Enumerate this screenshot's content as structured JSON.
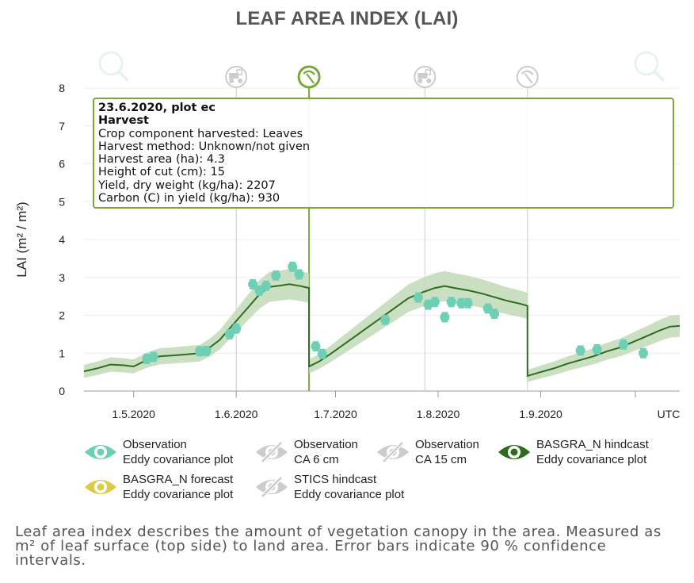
{
  "title": "LEAF AREA INDEX (LAI)",
  "tooltip": {
    "line1": "23.6.2020, plot ec",
    "line2": "Harvest",
    "lines": [
      "Crop component harvested: Leaves",
      "Harvest method: Unknown/not given",
      "Harvest area (ha): 4.3",
      "Height of cut (cm): 15",
      "Yield, dry weight (kg/ha): 2207",
      "Carbon (C) in yield (kg/ha): 930"
    ]
  },
  "legend": [
    {
      "title": "Observation",
      "sub": "Eddy covariance plot",
      "icon": "eye-icon",
      "color": "#6fcfb5",
      "active": true
    },
    {
      "title": "Observation",
      "sub": "CA 6 cm",
      "icon": "eye-slash-icon",
      "color": "#cccccc",
      "active": false
    },
    {
      "title": "Observation",
      "sub": "CA 15 cm",
      "icon": "eye-slash-icon",
      "color": "#cccccc",
      "active": false
    },
    {
      "title": "BASGRA_N hindcast",
      "sub": "Eddy covariance plot",
      "icon": "eye-icon",
      "color": "#2d6b1e",
      "active": true
    },
    {
      "title": "BASGRA_N forecast",
      "sub": "Eddy covariance plot",
      "icon": "eye-icon",
      "color": "#dccb4a",
      "active": true
    },
    {
      "title": "STICS hindcast",
      "sub": "Eddy covariance plot",
      "icon": "eye-slash-icon",
      "color": "#cccccc",
      "active": false
    }
  ],
  "description": "Leaf area index describes the amount of vegetation canopy in the area. Measured as m² of leaf surface (top side) to land area. Error bars indicate 90 % confidence intervals.",
  "colors": {
    "observation": "#6fcfb5",
    "hindcast_line": "#2d6b1e",
    "band": "#c2dbb8",
    "event_active": "#78a83c",
    "event_inactive": "#cccccc"
  },
  "chart_data": {
    "type": "line",
    "ylabel": "LAI (m² / m²)",
    "ylim": [
      0,
      8
    ],
    "yticks": [
      "0",
      "1",
      "2",
      "3",
      "4",
      "5",
      "6",
      "7",
      "8"
    ],
    "xlim": [
      "2020-04-16",
      "2020-10-13"
    ],
    "xticks": [
      {
        "label": "1.5.2020",
        "date": "2020-05-01"
      },
      {
        "label": "1.6.2020",
        "date": "2020-06-01"
      },
      {
        "label": "1.7.2020",
        "date": "2020-07-01"
      },
      {
        "label": "1.8.2020",
        "date": "2020-08-01"
      },
      {
        "label": "1.9.2020",
        "date": "2020-09-01"
      }
    ],
    "timezone_label": "UTC",
    "events": [
      {
        "date": "2020-06-01",
        "type": "fertilization",
        "icon": "tractor-icon",
        "active": false
      },
      {
        "date": "2020-06-23",
        "type": "harvest",
        "icon": "sickle-icon",
        "active": true
      },
      {
        "date": "2020-07-28",
        "type": "fertilization",
        "icon": "tractor-icon",
        "active": false
      },
      {
        "date": "2020-08-28",
        "type": "harvest",
        "icon": "sickle-icon",
        "active": false
      }
    ],
    "series": [
      {
        "name": "BASGRA_N hindcast",
        "x": [
          "2020-04-16",
          "2020-04-20",
          "2020-04-24",
          "2020-04-28",
          "2020-05-01",
          "2020-05-05",
          "2020-05-09",
          "2020-05-13",
          "2020-05-17",
          "2020-05-21",
          "2020-05-24",
          "2020-05-27",
          "2020-05-30",
          "2020-06-02",
          "2020-06-05",
          "2020-06-08",
          "2020-06-11",
          "2020-06-14",
          "2020-06-17",
          "2020-06-20",
          "2020-06-23",
          "2020-06-23",
          "2020-06-26",
          "2020-06-29",
          "2020-07-03",
          "2020-07-07",
          "2020-07-11",
          "2020-07-15",
          "2020-07-19",
          "2020-07-23",
          "2020-07-27",
          "2020-07-31",
          "2020-08-03",
          "2020-08-06",
          "2020-08-10",
          "2020-08-14",
          "2020-08-18",
          "2020-08-22",
          "2020-08-26",
          "2020-08-28",
          "2020-08-28",
          "2020-09-01",
          "2020-09-05",
          "2020-09-09",
          "2020-09-13",
          "2020-09-17",
          "2020-09-21",
          "2020-09-25",
          "2020-09-29",
          "2020-10-03",
          "2020-10-07",
          "2020-10-10",
          "2020-10-13"
        ],
        "y": [
          0.52,
          0.6,
          0.7,
          0.68,
          0.65,
          0.82,
          0.92,
          0.94,
          0.97,
          1.0,
          1.15,
          1.35,
          1.65,
          1.95,
          2.25,
          2.55,
          2.75,
          2.78,
          2.82,
          2.78,
          2.72,
          0.65,
          0.78,
          0.95,
          1.2,
          1.45,
          1.7,
          1.95,
          2.2,
          2.45,
          2.6,
          2.72,
          2.77,
          2.72,
          2.66,
          2.58,
          2.48,
          2.38,
          2.3,
          2.25,
          0.4,
          0.5,
          0.6,
          0.72,
          0.82,
          0.92,
          1.05,
          1.15,
          1.3,
          1.45,
          1.6,
          1.7,
          1.72
        ]
      },
      {
        "name": "Observation",
        "x": [
          "2020-05-05",
          "2020-05-07",
          "2020-05-21",
          "2020-05-23",
          "2020-05-30",
          "2020-06-01",
          "2020-06-06",
          "2020-06-08",
          "2020-06-10",
          "2020-06-13",
          "2020-06-18",
          "2020-06-20",
          "2020-06-25",
          "2020-06-27",
          "2020-07-16",
          "2020-07-26",
          "2020-07-29",
          "2020-07-31",
          "2020-08-03",
          "2020-08-05",
          "2020-08-08",
          "2020-08-10",
          "2020-08-16",
          "2020-08-18",
          "2020-09-13",
          "2020-09-18",
          "2020-09-26",
          "2020-10-02"
        ],
        "y": [
          0.85,
          0.9,
          1.05,
          1.06,
          1.5,
          1.65,
          2.82,
          2.65,
          2.78,
          3.05,
          3.28,
          3.08,
          1.18,
          0.98,
          1.88,
          2.47,
          2.28,
          2.35,
          1.95,
          2.35,
          2.32,
          2.32,
          2.18,
          2.04,
          1.07,
          1.1,
          1.23,
          1.0
        ]
      }
    ]
  }
}
